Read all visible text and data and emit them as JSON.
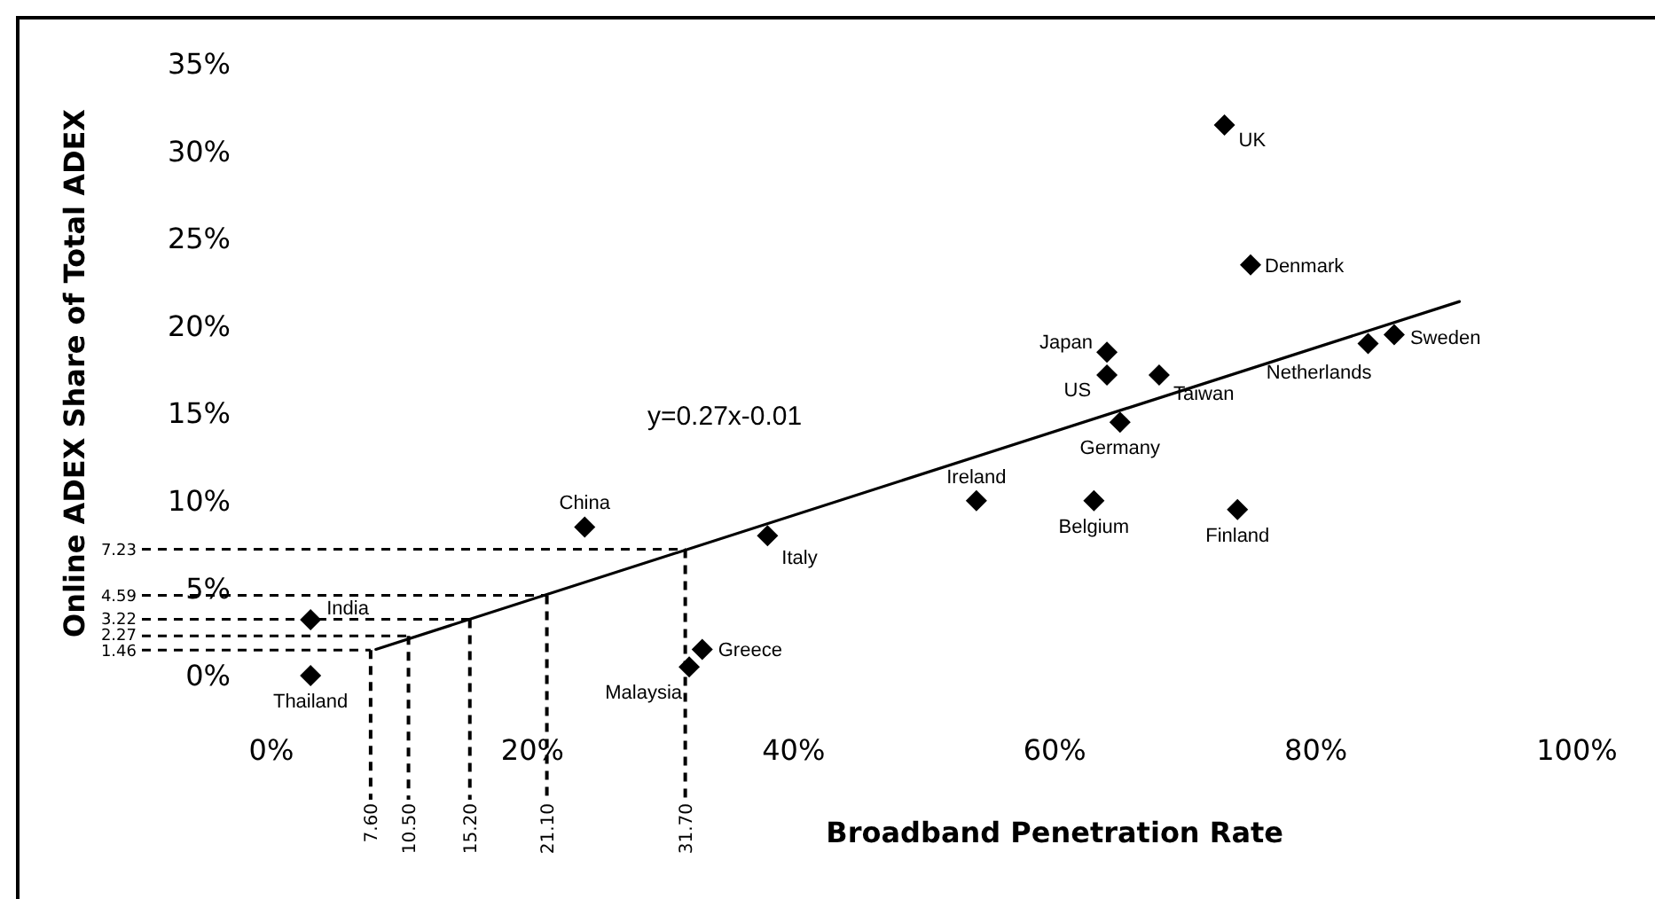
{
  "chart_data": {
    "type": "scatter",
    "xlabel": "Broadband Penetration Rate",
    "ylabel": "Online ADEX Share of Total ADEX",
    "annotations": [
      "y=0.27x-0.01"
    ],
    "xlim": [
      0,
      100
    ],
    "xticks": [
      {
        "value": 0,
        "label": "0%"
      },
      {
        "value": 20,
        "label": "20%"
      },
      {
        "value": 40,
        "label": "40%"
      },
      {
        "value": 60,
        "label": "60%"
      },
      {
        "value": 80,
        "label": "80%"
      },
      {
        "value": 100,
        "label": "100%"
      }
    ],
    "ylim": [
      0,
      35
    ],
    "yticks": [
      {
        "value": 0,
        "label": "0%"
      },
      {
        "value": 5,
        "label": "5%"
      },
      {
        "value": 10,
        "label": "10%"
      },
      {
        "value": 15,
        "label": "15%"
      },
      {
        "value": 20,
        "label": "20%"
      },
      {
        "value": 25,
        "label": "25%"
      },
      {
        "value": 30,
        "label": "30%"
      },
      {
        "value": 35,
        "label": "35%"
      }
    ],
    "marker": "diamond",
    "series": [
      {
        "name": "UK",
        "color": "#000000",
        "x": [
          73
        ],
        "values": [
          31.5
        ]
      },
      {
        "name": "Denmark",
        "color": "#000000",
        "x": [
          75
        ],
        "values": [
          23.5
        ]
      },
      {
        "name": "Netherlands",
        "color": "#000000",
        "x": [
          84
        ],
        "values": [
          19
        ]
      },
      {
        "name": "Sweden",
        "color": "#000000",
        "x": [
          86
        ],
        "values": [
          19.5
        ]
      },
      {
        "name": "Japan",
        "color": "#000000",
        "x": [
          64
        ],
        "values": [
          18.5
        ]
      },
      {
        "name": "US",
        "color": "#000000",
        "x": [
          64
        ],
        "values": [
          17.2
        ]
      },
      {
        "name": "Taiwan",
        "color": "#000000",
        "x": [
          68
        ],
        "values": [
          17.2
        ]
      },
      {
        "name": "Germany",
        "color": "#000000",
        "x": [
          65
        ],
        "values": [
          14.5
        ]
      },
      {
        "name": "Ireland",
        "color": "#000000",
        "x": [
          54
        ],
        "values": [
          10
        ]
      },
      {
        "name": "Belgium",
        "color": "#000000",
        "x": [
          63
        ],
        "values": [
          10
        ]
      },
      {
        "name": "Finland",
        "color": "#000000",
        "x": [
          74
        ],
        "values": [
          9.5
        ]
      },
      {
        "name": "Italy",
        "color": "#000000",
        "x": [
          38
        ],
        "values": [
          8
        ]
      },
      {
        "name": "China",
        "color": "#000000",
        "x": [
          24
        ],
        "values": [
          8.5
        ]
      },
      {
        "name": "India",
        "color": "#000000",
        "x": [
          3
        ],
        "values": [
          3.2
        ]
      },
      {
        "name": "Thailand",
        "color": "#000000",
        "x": [
          3
        ],
        "values": [
          0
        ]
      },
      {
        "name": "Greece",
        "color": "#000000",
        "x": [
          33
        ],
        "values": [
          1.5
        ]
      },
      {
        "name": "Malaysia",
        "color": "#000000",
        "x": [
          32
        ],
        "values": [
          0.5
        ]
      },
      {
        "type": "line",
        "color": "#000000",
        "marker": "none",
        "x": [
          8,
          91
        ],
        "values": [
          1.5,
          21.4
        ]
      }
    ],
    "ref_lines": [
      {
        "axis": "y",
        "value": 7.23,
        "label": "7.23",
        "line_style": "dashed",
        "color": "#000000"
      },
      {
        "axis": "y",
        "value": 4.59,
        "label": "4.59",
        "line_style": "dashed",
        "color": "#000000"
      },
      {
        "axis": "y",
        "value": 3.22,
        "label": "3.22",
        "line_style": "dashed",
        "color": "#000000"
      },
      {
        "axis": "y",
        "value": 2.27,
        "label": "2.27",
        "line_style": "dashed",
        "color": "#000000"
      },
      {
        "axis": "y",
        "value": 1.46,
        "label": "1.46",
        "line_style": "dashed",
        "color": "#000000"
      },
      {
        "axis": "x",
        "value": 31.7,
        "label": "31.70",
        "line_style": "dashed",
        "color": "#000000"
      },
      {
        "axis": "x",
        "value": 21.1,
        "label": "21.10",
        "line_style": "dashed",
        "color": "#000000"
      },
      {
        "axis": "x",
        "value": 15.2,
        "label": "15.20",
        "line_style": "dashed",
        "color": "#000000"
      },
      {
        "axis": "x",
        "value": 10.5,
        "label": "10.50",
        "line_style": "dashed",
        "color": "#000000"
      },
      {
        "axis": "x",
        "value": 7.6,
        "label": "7.60",
        "line_style": "dashed",
        "color": "#000000"
      }
    ]
  }
}
